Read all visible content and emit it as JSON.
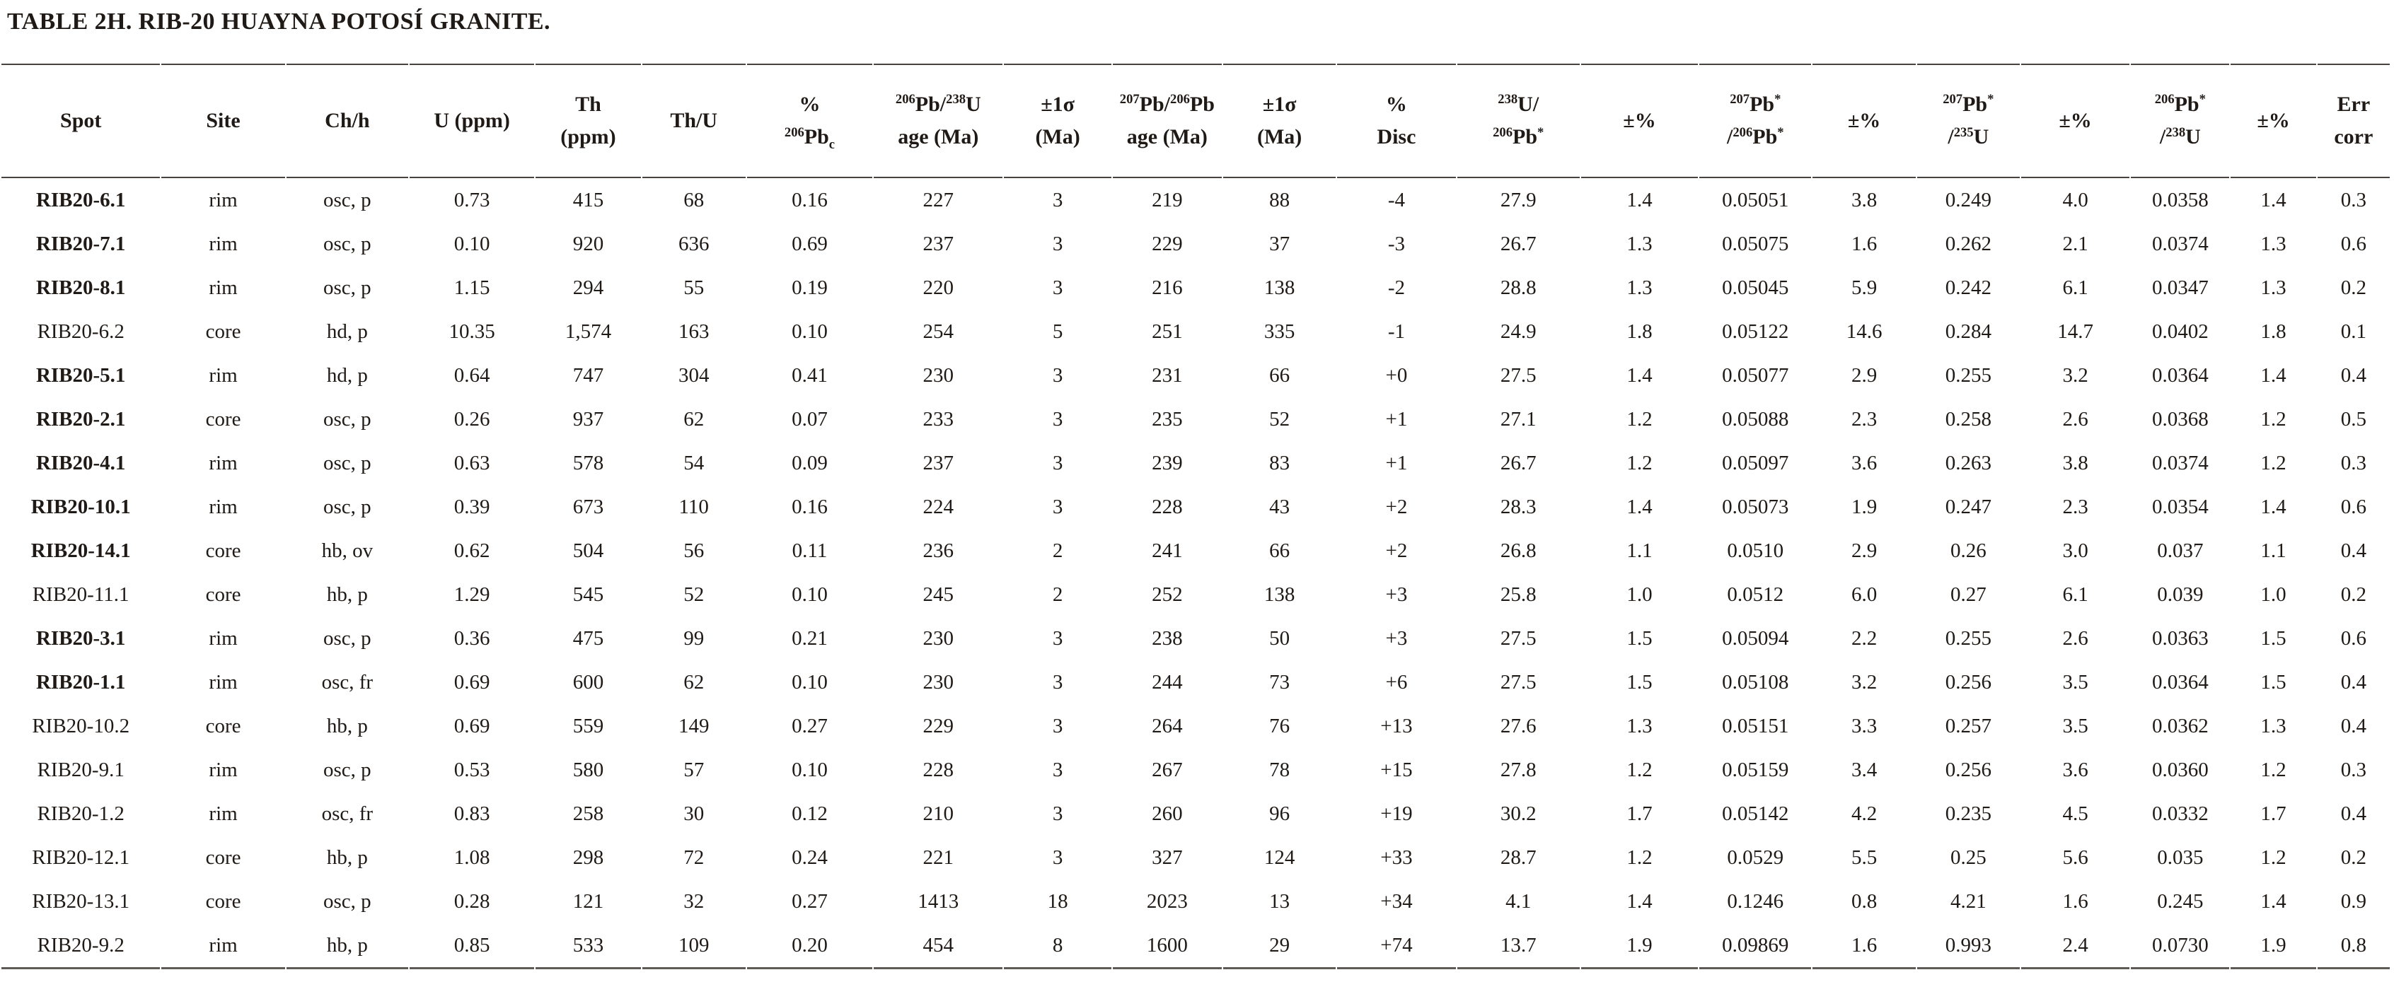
{
  "title": "TABLE 2H. RIB-20 HUAYNA POTOSÍ GRANITE.",
  "table": {
    "columns": [
      {
        "id": "spot",
        "lines": [
          [
            {
              "t": "Spot"
            }
          ]
        ]
      },
      {
        "id": "site",
        "lines": [
          [
            {
              "t": "Site"
            }
          ]
        ]
      },
      {
        "id": "ch-h",
        "lines": [
          [
            {
              "t": "Ch/h"
            }
          ]
        ]
      },
      {
        "id": "u-ppm",
        "lines": [
          [
            {
              "t": "U (ppm)"
            }
          ]
        ]
      },
      {
        "id": "th-ppm",
        "lines": [
          [
            {
              "t": "Th"
            }
          ],
          [
            {
              "t": "(ppm)"
            }
          ]
        ]
      },
      {
        "id": "th-u",
        "lines": [
          [
            {
              "t": "Th/U"
            }
          ]
        ]
      },
      {
        "id": "pct-206pbc",
        "lines": [
          [
            {
              "t": "%"
            }
          ],
          [
            {
              "t": "206",
              "s": "sup"
            },
            {
              "t": "Pb"
            },
            {
              "t": "c",
              "s": "sub"
            }
          ]
        ]
      },
      {
        "id": "age-206-238",
        "lines": [
          [
            {
              "t": "206",
              "s": "sup"
            },
            {
              "t": "Pb/"
            },
            {
              "t": "238",
              "s": "sup"
            },
            {
              "t": "U"
            }
          ],
          [
            {
              "t": "age (Ma)"
            }
          ]
        ]
      },
      {
        "id": "err-1sigma-a",
        "lines": [
          [
            {
              "t": "±1σ"
            }
          ],
          [
            {
              "t": "(Ma)"
            }
          ]
        ]
      },
      {
        "id": "age-207-206",
        "lines": [
          [
            {
              "t": "207",
              "s": "sup"
            },
            {
              "t": "Pb/"
            },
            {
              "t": "206",
              "s": "sup"
            },
            {
              "t": "Pb"
            }
          ],
          [
            {
              "t": "age (Ma)"
            }
          ]
        ]
      },
      {
        "id": "err-1sigma-b",
        "lines": [
          [
            {
              "t": "±1σ"
            }
          ],
          [
            {
              "t": "(Ma)"
            }
          ]
        ]
      },
      {
        "id": "pct-disc",
        "lines": [
          [
            {
              "t": "%"
            }
          ],
          [
            {
              "t": "Disc"
            }
          ]
        ]
      },
      {
        "id": "u238-pb206",
        "lines": [
          [
            {
              "t": "238",
              "s": "sup"
            },
            {
              "t": "U/"
            }
          ],
          [
            {
              "t": "206",
              "s": "sup"
            },
            {
              "t": "Pb"
            },
            {
              "t": "*",
              "s": "sup"
            }
          ]
        ]
      },
      {
        "id": "pm-pct-1",
        "lines": [
          [
            {
              "t": "±%"
            }
          ]
        ]
      },
      {
        "id": "pb207-pb206",
        "lines": [
          [
            {
              "t": "207",
              "s": "sup"
            },
            {
              "t": "Pb"
            },
            {
              "t": "*",
              "s": "sup"
            }
          ],
          [
            {
              "t": "/"
            },
            {
              "t": "206",
              "s": "sup"
            },
            {
              "t": "Pb"
            },
            {
              "t": "*",
              "s": "sup"
            }
          ]
        ]
      },
      {
        "id": "pm-pct-2",
        "lines": [
          [
            {
              "t": "±%"
            }
          ]
        ]
      },
      {
        "id": "pb207-u235",
        "lines": [
          [
            {
              "t": "207",
              "s": "sup"
            },
            {
              "t": "Pb"
            },
            {
              "t": "*",
              "s": "sup"
            }
          ],
          [
            {
              "t": "/"
            },
            {
              "t": "235",
              "s": "sup"
            },
            {
              "t": "U"
            }
          ]
        ]
      },
      {
        "id": "pm-pct-3",
        "lines": [
          [
            {
              "t": "±%"
            }
          ]
        ]
      },
      {
        "id": "pb206-u238",
        "lines": [
          [
            {
              "t": "206",
              "s": "sup"
            },
            {
              "t": "Pb"
            },
            {
              "t": "*",
              "s": "sup"
            }
          ],
          [
            {
              "t": "/"
            },
            {
              "t": "238",
              "s": "sup"
            },
            {
              "t": "U"
            }
          ]
        ]
      },
      {
        "id": "pm-pct-4",
        "lines": [
          [
            {
              "t": "±%"
            }
          ]
        ]
      },
      {
        "id": "err-corr",
        "lines": [
          [
            {
              "t": "Err"
            }
          ],
          [
            {
              "t": "corr"
            }
          ]
        ]
      }
    ],
    "rows": [
      {
        "bold": true,
        "cells": [
          "RIB20-6.1",
          "rim",
          "osc, p",
          "0.73",
          "415",
          "68",
          "0.16",
          "227",
          "3",
          "219",
          "88",
          "-4",
          "27.9",
          "1.4",
          "0.05051",
          "3.8",
          "0.249",
          "4.0",
          "0.0358",
          "1.4",
          "0.3"
        ]
      },
      {
        "bold": true,
        "cells": [
          "RIB20-7.1",
          "rim",
          "osc, p",
          "0.10",
          "920",
          "636",
          "0.69",
          "237",
          "3",
          "229",
          "37",
          "-3",
          "26.7",
          "1.3",
          "0.05075",
          "1.6",
          "0.262",
          "2.1",
          "0.0374",
          "1.3",
          "0.6"
        ]
      },
      {
        "bold": true,
        "cells": [
          "RIB20-8.1",
          "rim",
          "osc, p",
          "1.15",
          "294",
          "55",
          "0.19",
          "220",
          "3",
          "216",
          "138",
          "-2",
          "28.8",
          "1.3",
          "0.05045",
          "5.9",
          "0.242",
          "6.1",
          "0.0347",
          "1.3",
          "0.2"
        ]
      },
      {
        "bold": false,
        "cells": [
          "RIB20-6.2",
          "core",
          "hd, p",
          "10.35",
          "1,574",
          "163",
          "0.10",
          "254",
          "5",
          "251",
          "335",
          "-1",
          "24.9",
          "1.8",
          "0.05122",
          "14.6",
          "0.284",
          "14.7",
          "0.0402",
          "1.8",
          "0.1"
        ]
      },
      {
        "bold": true,
        "cells": [
          "RIB20-5.1",
          "rim",
          "hd, p",
          "0.64",
          "747",
          "304",
          "0.41",
          "230",
          "3",
          "231",
          "66",
          "+0",
          "27.5",
          "1.4",
          "0.05077",
          "2.9",
          "0.255",
          "3.2",
          "0.0364",
          "1.4",
          "0.4"
        ]
      },
      {
        "bold": true,
        "cells": [
          "RIB20-2.1",
          "core",
          "osc, p",
          "0.26",
          "937",
          "62",
          "0.07",
          "233",
          "3",
          "235",
          "52",
          "+1",
          "27.1",
          "1.2",
          "0.05088",
          "2.3",
          "0.258",
          "2.6",
          "0.0368",
          "1.2",
          "0.5"
        ]
      },
      {
        "bold": true,
        "cells": [
          "RIB20-4.1",
          "rim",
          "osc, p",
          "0.63",
          "578",
          "54",
          "0.09",
          "237",
          "3",
          "239",
          "83",
          "+1",
          "26.7",
          "1.2",
          "0.05097",
          "3.6",
          "0.263",
          "3.8",
          "0.0374",
          "1.2",
          "0.3"
        ]
      },
      {
        "bold": true,
        "cells": [
          "RIB20-10.1",
          "rim",
          "osc, p",
          "0.39",
          "673",
          "110",
          "0.16",
          "224",
          "3",
          "228",
          "43",
          "+2",
          "28.3",
          "1.4",
          "0.05073",
          "1.9",
          "0.247",
          "2.3",
          "0.0354",
          "1.4",
          "0.6"
        ]
      },
      {
        "bold": true,
        "cells": [
          "RIB20-14.1",
          "core",
          "hb, ov",
          "0.62",
          "504",
          "56",
          "0.11",
          "236",
          "2",
          "241",
          "66",
          "+2",
          "26.8",
          "1.1",
          "0.0510",
          "2.9",
          "0.26",
          "3.0",
          "0.037",
          "1.1",
          "0.4"
        ]
      },
      {
        "bold": false,
        "cells": [
          "RIB20-11.1",
          "core",
          "hb, p",
          "1.29",
          "545",
          "52",
          "0.10",
          "245",
          "2",
          "252",
          "138",
          "+3",
          "25.8",
          "1.0",
          "0.0512",
          "6.0",
          "0.27",
          "6.1",
          "0.039",
          "1.0",
          "0.2"
        ]
      },
      {
        "bold": true,
        "cells": [
          "RIB20-3.1",
          "rim",
          "osc, p",
          "0.36",
          "475",
          "99",
          "0.21",
          "230",
          "3",
          "238",
          "50",
          "+3",
          "27.5",
          "1.5",
          "0.05094",
          "2.2",
          "0.255",
          "2.6",
          "0.0363",
          "1.5",
          "0.6"
        ]
      },
      {
        "bold": true,
        "cells": [
          "RIB20-1.1",
          "rim",
          "osc, fr",
          "0.69",
          "600",
          "62",
          "0.10",
          "230",
          "3",
          "244",
          "73",
          "+6",
          "27.5",
          "1.5",
          "0.05108",
          "3.2",
          "0.256",
          "3.5",
          "0.0364",
          "1.5",
          "0.4"
        ]
      },
      {
        "bold": false,
        "cells": [
          "RIB20-10.2",
          "core",
          "hb, p",
          "0.69",
          "559",
          "149",
          "0.27",
          "229",
          "3",
          "264",
          "76",
          "+13",
          "27.6",
          "1.3",
          "0.05151",
          "3.3",
          "0.257",
          "3.5",
          "0.0362",
          "1.3",
          "0.4"
        ]
      },
      {
        "bold": false,
        "cells": [
          "RIB20-9.1",
          "rim",
          "osc, p",
          "0.53",
          "580",
          "57",
          "0.10",
          "228",
          "3",
          "267",
          "78",
          "+15",
          "27.8",
          "1.2",
          "0.05159",
          "3.4",
          "0.256",
          "3.6",
          "0.0360",
          "1.2",
          "0.3"
        ]
      },
      {
        "bold": false,
        "cells": [
          "RIB20-1.2",
          "rim",
          "osc, fr",
          "0.83",
          "258",
          "30",
          "0.12",
          "210",
          "3",
          "260",
          "96",
          "+19",
          "30.2",
          "1.7",
          "0.05142",
          "4.2",
          "0.235",
          "4.5",
          "0.0332",
          "1.7",
          "0.4"
        ]
      },
      {
        "bold": false,
        "cells": [
          "RIB20-12.1",
          "core",
          "hb, p",
          "1.08",
          "298",
          "72",
          "0.24",
          "221",
          "3",
          "327",
          "124",
          "+33",
          "28.7",
          "1.2",
          "0.0529",
          "5.5",
          "0.25",
          "5.6",
          "0.035",
          "1.2",
          "0.2"
        ]
      },
      {
        "bold": false,
        "cells": [
          "RIB20-13.1",
          "core",
          "osc, p",
          "0.28",
          "121",
          "32",
          "0.27",
          "1413",
          "18",
          "2023",
          "13",
          "+34",
          "4.1",
          "1.4",
          "0.1246",
          "0.8",
          "4.21",
          "1.6",
          "0.245",
          "1.4",
          "0.9"
        ]
      },
      {
        "bold": false,
        "cells": [
          "RIB20-9.2",
          "rim",
          "hb, p",
          "0.85",
          "533",
          "109",
          "0.20",
          "454",
          "8",
          "1600",
          "29",
          "+74",
          "13.7",
          "1.9",
          "0.09869",
          "1.6",
          "0.993",
          "2.4",
          "0.0730",
          "1.9",
          "0.8"
        ]
      }
    ]
  }
}
